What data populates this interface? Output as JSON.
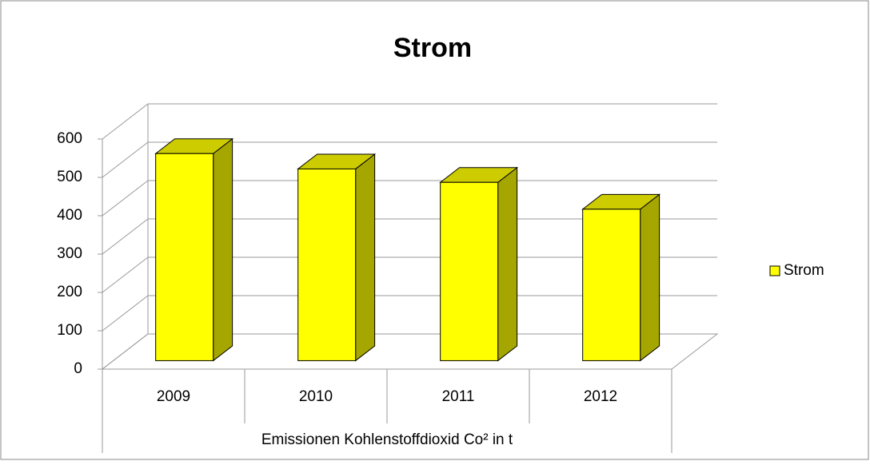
{
  "chart_data": {
    "type": "bar",
    "title": "Strom",
    "x_label": "Emissionen Kohlenstoffdioxid Co² in t",
    "categories": [
      "2009",
      "2010",
      "2011",
      "2012"
    ],
    "series": [
      {
        "name": "Strom",
        "color": "#ffff00",
        "values": [
          540,
          500,
          465,
          395
        ]
      }
    ],
    "ylim": [
      0,
      600
    ],
    "yticks": [
      0,
      100,
      200,
      300,
      400,
      500,
      600
    ],
    "grid": true,
    "legend": "right"
  }
}
